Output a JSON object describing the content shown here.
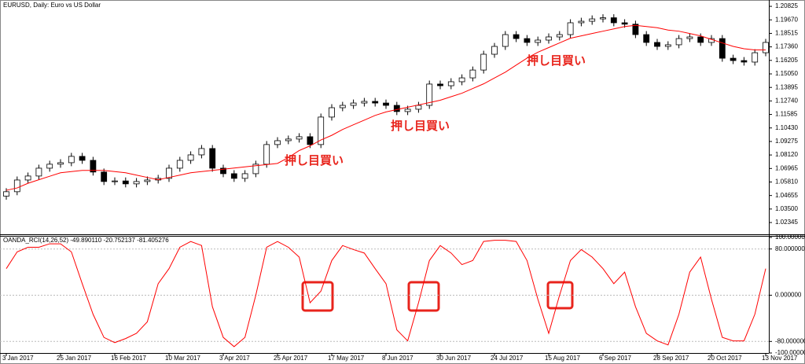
{
  "chart_data": [
    {
      "type": "candlestick",
      "title": "EURUSD, Daily:  Euro vs US Dollar",
      "categories": [
        "3 Jan 2017",
        null,
        null,
        null,
        null,
        "25 Jan 2017",
        null,
        null,
        null,
        null,
        "16 Feb 2017",
        null,
        null,
        null,
        null,
        "10 Mar 2017",
        null,
        null,
        null,
        null,
        "3 Apr 2017",
        null,
        null,
        null,
        null,
        "25 Apr 2017",
        null,
        null,
        null,
        null,
        "17 May 2017",
        null,
        null,
        null,
        null,
        "8 Jun 2017",
        null,
        null,
        null,
        null,
        "30 Jun 2017",
        null,
        null,
        null,
        null,
        "24 Jul 2017",
        null,
        null,
        null,
        null,
        "15 Aug 2017",
        null,
        null,
        null,
        null,
        "6 Sep 2017",
        null,
        null,
        null,
        null,
        "28 Sep 2017",
        null,
        null,
        null,
        null,
        "20 Oct 2017",
        null,
        null,
        null,
        null,
        "13 Nov 2017"
      ],
      "open": [
        1.046,
        1.0498,
        1.0598,
        1.0632,
        1.0699,
        1.0733,
        1.0746,
        1.08,
        1.0766,
        1.0666,
        1.0585,
        1.059,
        1.0565,
        1.0585,
        1.0598,
        1.0612,
        1.0699,
        1.0766,
        1.0813,
        1.0867,
        1.0699,
        1.0652,
        1.0612,
        1.0652,
        1.0733,
        1.0901,
        1.0934,
        1.0948,
        1.0968,
        1.0901,
        1.1136,
        1.1216,
        1.1236,
        1.1256,
        1.127,
        1.1256,
        1.1236,
        1.1183,
        1.1203,
        1.1236,
        1.1418,
        1.1404,
        1.1438,
        1.1471,
        1.1538,
        1.1673,
        1.174,
        1.1841,
        1.1807,
        1.1774,
        1.1794,
        1.1821,
        1.1841,
        1.1942,
        1.1955,
        1.1975,
        1.1985,
        1.1942,
        1.193,
        1.1841,
        1.1774,
        1.174,
        1.1754,
        1.1807,
        1.1821,
        1.1774,
        1.1807,
        1.1639,
        1.1619,
        1.1606,
        1.1686
      ],
      "high": [
        1.0528,
        1.0628,
        1.0662,
        1.0729,
        1.0763,
        1.0776,
        1.083,
        1.083,
        1.0796,
        1.0696,
        1.062,
        1.062,
        1.0615,
        1.0628,
        1.0642,
        1.0729,
        1.0796,
        1.0843,
        1.0897,
        1.0897,
        1.0729,
        1.0682,
        1.0682,
        1.0763,
        1.0931,
        1.0964,
        1.0978,
        1.0998,
        1.0998,
        1.1166,
        1.1246,
        1.1266,
        1.1286,
        1.13,
        1.13,
        1.1286,
        1.1266,
        1.1233,
        1.1266,
        1.1448,
        1.1448,
        1.1468,
        1.1501,
        1.1568,
        1.1703,
        1.177,
        1.1871,
        1.1871,
        1.1837,
        1.1824,
        1.1851,
        1.1871,
        1.1972,
        1.1985,
        1.2005,
        1.2015,
        1.2015,
        1.1972,
        1.196,
        1.1871,
        1.1804,
        1.1784,
        1.1837,
        1.1851,
        1.1851,
        1.1837,
        1.1837,
        1.1669,
        1.1649,
        1.1716,
        1.1804
      ],
      "low": [
        1.043,
        1.0468,
        1.0568,
        1.0602,
        1.0669,
        1.0703,
        1.0716,
        1.0736,
        1.0636,
        1.0555,
        1.0555,
        1.0535,
        1.0535,
        1.0555,
        1.0568,
        1.0582,
        1.0669,
        1.0736,
        1.0783,
        1.0669,
        1.0622,
        1.0582,
        1.0582,
        1.0622,
        1.0703,
        1.0871,
        1.0904,
        1.0918,
        1.0871,
        1.0871,
        1.1106,
        1.1186,
        1.1206,
        1.1226,
        1.1226,
        1.1206,
        1.1153,
        1.1153,
        1.1173,
        1.1206,
        1.1374,
        1.1374,
        1.1408,
        1.1441,
        1.1508,
        1.1643,
        1.171,
        1.1777,
        1.1744,
        1.1744,
        1.1764,
        1.1791,
        1.1811,
        1.1912,
        1.1925,
        1.1945,
        1.1912,
        1.19,
        1.1811,
        1.1744,
        1.171,
        1.171,
        1.1724,
        1.1777,
        1.1744,
        1.1744,
        1.1609,
        1.1589,
        1.1576,
        1.1576,
        1.1656
      ],
      "close": [
        1.0498,
        1.0598,
        1.0632,
        1.0699,
        1.0733,
        1.0746,
        1.08,
        1.0766,
        1.0666,
        1.0585,
        1.059,
        1.0565,
        1.0585,
        1.0598,
        1.0612,
        1.0699,
        1.0766,
        1.0813,
        1.0867,
        1.0699,
        1.0652,
        1.0612,
        1.0652,
        1.0733,
        1.0901,
        1.0934,
        1.0948,
        1.0968,
        1.0901,
        1.1136,
        1.1216,
        1.1236,
        1.1256,
        1.127,
        1.1256,
        1.1236,
        1.1183,
        1.1203,
        1.1236,
        1.1418,
        1.1404,
        1.1438,
        1.1471,
        1.1538,
        1.1673,
        1.174,
        1.1841,
        1.1807,
        1.1774,
        1.1794,
        1.1821,
        1.1841,
        1.1942,
        1.1955,
        1.1975,
        1.1985,
        1.1942,
        1.193,
        1.1841,
        1.1774,
        1.174,
        1.1754,
        1.1807,
        1.1821,
        1.1774,
        1.1807,
        1.1639,
        1.1619,
        1.1606,
        1.1686,
        1.1774
      ],
      "up_color": "#ffffff",
      "down_color": "#000000",
      "ma": {
        "color": "#ff0000",
        "values": [
          1.051,
          1.053,
          1.057,
          1.06,
          1.063,
          1.066,
          1.067,
          1.068,
          1.068,
          1.068,
          1.067,
          1.066,
          1.064,
          1.062,
          1.06,
          1.062,
          1.064,
          1.066,
          1.067,
          1.068,
          1.069,
          1.07,
          1.071,
          1.072,
          1.073,
          1.074,
          1.079,
          1.085,
          1.089,
          1.094,
          1.098,
          1.103,
          1.107,
          1.111,
          1.115,
          1.118,
          1.12,
          1.122,
          1.124,
          1.126,
          1.128,
          1.131,
          1.134,
          1.138,
          1.142,
          1.147,
          1.152,
          1.158,
          1.164,
          1.169,
          1.173,
          1.177,
          1.181,
          1.183,
          1.185,
          1.187,
          1.189,
          1.191,
          1.192,
          1.191,
          1.19,
          1.188,
          1.187,
          1.185,
          1.183,
          1.18,
          1.177,
          1.174,
          1.172,
          1.171,
          1.171
        ]
      },
      "annotations": [
        "押し目買い",
        "押し目買い",
        "押し目買い"
      ],
      "ylim": [
        1.0134,
        1.213
      ],
      "yticks": [
        {
          "value": 1.20825,
          "label": "1.20825"
        },
        {
          "value": 1.1967,
          "label": "1.19670"
        },
        {
          "value": 1.18515,
          "label": "1.18515"
        },
        {
          "value": 1.1736,
          "label": "1.17360"
        },
        {
          "value": 1.16205,
          "label": "1.16205"
        },
        {
          "value": 1.1505,
          "label": "1.15050"
        },
        {
          "value": 1.13895,
          "label": "1.13895"
        },
        {
          "value": 1.1274,
          "label": "1.12740"
        },
        {
          "value": 1.11585,
          "label": "1.11585"
        },
        {
          "value": 1.1043,
          "label": "1.10430"
        },
        {
          "value": 1.09275,
          "label": "1.09275"
        },
        {
          "value": 1.0812,
          "label": "1.08120"
        },
        {
          "value": 1.06965,
          "label": "1.06965"
        },
        {
          "value": 1.0581,
          "label": "1.05810"
        },
        {
          "value": 1.04655,
          "label": "1.04655"
        },
        {
          "value": 1.035,
          "label": "1.03500"
        },
        {
          "value": 1.02345,
          "label": "1.02345"
        }
      ]
    },
    {
      "type": "line",
      "title": "OANDA_RCI(14,26,52) -49.890110 -20.752137 -81.405276",
      "series": [
        {
          "color": "#ff0000",
          "values": [
            46,
            75,
            83,
            83,
            89,
            89,
            75,
            20,
            -33,
            -73,
            -82,
            -75,
            -66,
            -46,
            20,
            46,
            83,
            93,
            86,
            -20,
            -73,
            -89,
            -73,
            0,
            83,
            93,
            83,
            66,
            -13,
            7,
            60,
            86,
            79,
            73,
            46,
            20,
            -60,
            -79,
            -13,
            60,
            86,
            73,
            53,
            60,
            93,
            95,
            95,
            93,
            60,
            -7,
            -66,
            0,
            60,
            79,
            66,
            46,
            20,
            40,
            -20,
            -66,
            -79,
            -86,
            -33,
            40,
            66,
            -7,
            -73,
            -79,
            -79,
            -33,
            46
          ]
        }
      ],
      "ylim": [
        -100,
        100
      ],
      "yticks": [
        {
          "value": 100,
          "label": "100.000000"
        },
        {
          "value": 80,
          "label": "80.000000"
        },
        {
          "value": 0,
          "label": "0.000000"
        },
        {
          "value": -80,
          "label": "-80.000000"
        },
        {
          "value": -100,
          "label": "-100.000000"
        }
      ],
      "grid": true
    }
  ]
}
